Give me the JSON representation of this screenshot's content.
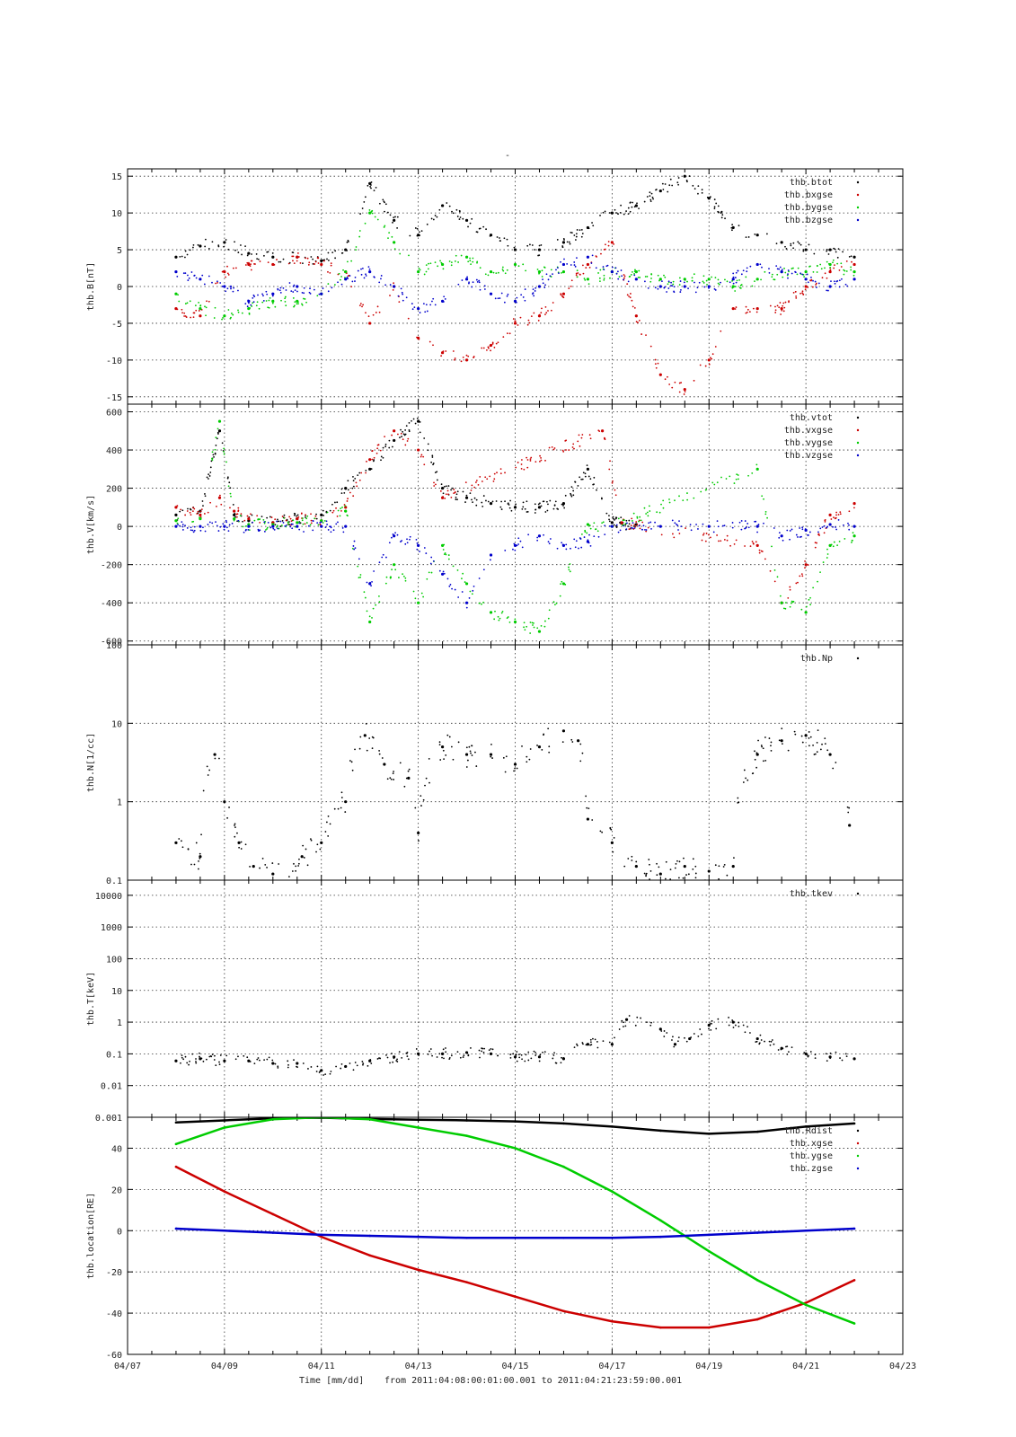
{
  "figure_title": "-",
  "footer": {
    "xlabel": "Time [mm/dd]",
    "range_text": "from 2011:04:08:00:01:00.001  to  2011:04:21:23:59:00.001"
  },
  "x_axis": {
    "tick_days": [
      7,
      9,
      11,
      13,
      15,
      17,
      19,
      21,
      23
    ],
    "tick_labels": [
      "04/07",
      "04/09",
      "04/11",
      "04/13",
      "04/15",
      "04/17",
      "04/19",
      "04/21",
      "04/23"
    ],
    "range_days": [
      7,
      23
    ],
    "minor_step_days": 0.5,
    "grid": true
  },
  "colors": {
    "black": "#000000",
    "red": "#cc0000",
    "green": "#00cc00",
    "blue": "#0000cc"
  },
  "chart_data": [
    {
      "type": "scatter",
      "ylabel": "thb.B[nT]",
      "ylim": [
        -16,
        16
      ],
      "yscale": "linear",
      "yticks": [
        -15,
        -10,
        -5,
        0,
        5,
        10,
        15
      ],
      "ytick_labels": [
        "-15",
        "-10",
        "-5",
        "0",
        "5",
        "10",
        "15"
      ],
      "grid": true,
      "legend": "top-right",
      "series": [
        {
          "name": "thb.btot",
          "color": "#000000",
          "x": [
            8,
            8.5,
            9,
            9.5,
            10,
            10.5,
            11,
            11.5,
            12,
            12.5,
            13,
            13.5,
            14,
            14.5,
            15,
            15.5,
            16,
            16.5,
            17,
            17.5,
            18,
            18.5,
            19,
            19.5,
            20,
            20.5,
            21,
            21.5,
            22
          ],
          "y": [
            4,
            5.5,
            6,
            4.5,
            4,
            4,
            3.5,
            5,
            14,
            9,
            7,
            11,
            9,
            7,
            5,
            5,
            6,
            8,
            10,
            11,
            13,
            15,
            12,
            8,
            7,
            6,
            5,
            5,
            4
          ]
        },
        {
          "name": "thb.bxgse",
          "color": "#cc0000",
          "x": [
            8,
            8.5,
            9,
            9.5,
            10,
            10.5,
            11,
            11.5,
            12,
            12.5,
            13,
            13.5,
            14,
            14.5,
            15,
            15.5,
            16,
            16.5,
            17,
            17.5,
            18,
            18.5,
            19,
            19.5,
            20,
            20.5,
            21,
            21.5,
            22
          ],
          "y": [
            -3,
            -4,
            2,
            3,
            3,
            4,
            3,
            2,
            -5,
            0,
            -7,
            -9,
            -10,
            -8,
            -5,
            -4,
            -1,
            3,
            6,
            -4,
            -12,
            -14,
            -10,
            -3,
            -3,
            -3,
            0,
            2,
            3
          ]
        },
        {
          "name": "thb.bygse",
          "color": "#00cc00",
          "x": [
            8,
            8.5,
            9,
            9.5,
            10,
            10.5,
            11,
            11.5,
            12,
            12.5,
            13,
            13.5,
            14,
            14.5,
            15,
            15.5,
            16,
            16.5,
            17,
            17.5,
            18,
            18.5,
            19,
            19.5,
            20,
            20.5,
            21,
            21.5,
            22
          ],
          "y": [
            -1,
            -3,
            -4,
            -3,
            -2,
            -2,
            -1,
            2,
            10,
            6,
            2,
            3,
            4,
            2,
            3,
            2,
            2,
            1,
            2,
            2,
            1,
            1,
            1,
            0,
            1,
            2,
            2,
            3,
            2
          ]
        },
        {
          "name": "thb.bzgse",
          "color": "#0000cc",
          "x": [
            8,
            8.5,
            9,
            9.5,
            10,
            10.5,
            11,
            11.5,
            12,
            12.5,
            13,
            13.5,
            14,
            14.5,
            15,
            15.5,
            16,
            16.5,
            17,
            17.5,
            18,
            18.5,
            19,
            19.5,
            20,
            20.5,
            21,
            21.5,
            22
          ],
          "y": [
            2,
            1,
            0,
            -2,
            -1,
            0,
            -1,
            1,
            2,
            0,
            -3,
            -2,
            1,
            -1,
            -2,
            0,
            3,
            4,
            2,
            1,
            0,
            0,
            0,
            1,
            3,
            2,
            1,
            0,
            1
          ]
        }
      ]
    },
    {
      "type": "scatter",
      "ylabel": "thb.V[km/s]",
      "ylim": [
        -620,
        640
      ],
      "yscale": "linear",
      "yticks": [
        -600,
        -400,
        -200,
        0,
        200,
        400,
        600
      ],
      "ytick_labels": [
        "-600",
        "-400",
        "-200",
        "0",
        "200",
        "400",
        "600"
      ],
      "grid": true,
      "legend": "top-right",
      "series": [
        {
          "name": "thb.vtot",
          "color": "#000000",
          "x": [
            8,
            8.5,
            8.9,
            9.2,
            9.5,
            10,
            10.5,
            11,
            11.5,
            12,
            12.5,
            13,
            13.5,
            14,
            14.5,
            15,
            15.5,
            16,
            16.5,
            17,
            17.5
          ],
          "y": [
            60,
            80,
            500,
            60,
            30,
            20,
            40,
            60,
            200,
            300,
            450,
            550,
            200,
            150,
            120,
            100,
            100,
            120,
            300,
            20,
            10
          ]
        },
        {
          "name": "thb.vxgse",
          "color": "#cc0000",
          "x": [
            8,
            8.5,
            8.9,
            9.2,
            9.5,
            10,
            10.5,
            11,
            11.5,
            12,
            12.5,
            13,
            13.5,
            16.8,
            17.2,
            20,
            20.5,
            21,
            21.5,
            22
          ],
          "y": [
            100,
            60,
            150,
            80,
            40,
            20,
            40,
            30,
            100,
            350,
            500,
            400,
            150,
            500,
            20,
            -100,
            -400,
            -200,
            60,
            120
          ]
        },
        {
          "name": "thb.vygse",
          "color": "#00cc00",
          "x": [
            8,
            8.5,
            8.9,
            9.2,
            9.5,
            10,
            10.5,
            11,
            11.5,
            12,
            12.5,
            13,
            13.5,
            14,
            14.5,
            15,
            15.5,
            16,
            16.5,
            17,
            20,
            20.5,
            21,
            21.5,
            22
          ],
          "y": [
            30,
            40,
            550,
            40,
            10,
            10,
            20,
            30,
            80,
            -500,
            -200,
            -400,
            -100,
            -300,
            -450,
            -500,
            -550,
            -300,
            10,
            0,
            300,
            -400,
            -450,
            -100,
            -50
          ]
        },
        {
          "name": "thb.vzgse",
          "color": "#0000cc",
          "x": [
            8,
            8.5,
            9,
            9.5,
            10,
            10.5,
            11,
            11.5,
            12,
            12.5,
            13,
            13.5,
            14,
            14.5,
            15,
            15.5,
            16,
            16.5,
            17,
            18,
            19,
            20,
            20.5,
            21,
            21.5,
            22
          ],
          "y": [
            0,
            0,
            0,
            0,
            0,
            0,
            0,
            0,
            -300,
            -50,
            -100,
            -250,
            -400,
            -150,
            -100,
            -50,
            -100,
            -80,
            0,
            0,
            0,
            0,
            -50,
            -20,
            10,
            0
          ]
        }
      ]
    },
    {
      "type": "scatter",
      "ylabel": "thb.N[1/cc]",
      "ylim": [
        0.1,
        100
      ],
      "yscale": "log",
      "yticks": [
        0.1,
        1,
        10,
        100
      ],
      "ytick_labels": [
        "0.1",
        "1",
        "10",
        "100"
      ],
      "grid": true,
      "legend": "top-right",
      "series": [
        {
          "name": "thb.Np",
          "color": "#000000",
          "x": [
            8,
            8.5,
            8.8,
            9,
            9.3,
            9.6,
            10,
            10.6,
            11,
            11.5,
            11.9,
            12.3,
            12.8,
            13,
            13.5,
            14,
            14.5,
            15,
            15.5,
            16,
            16.3,
            16.5,
            17,
            17.5,
            18,
            18.5,
            19,
            19.5,
            20,
            20.5,
            21,
            21.5,
            21.9
          ],
          "y": [
            0.3,
            0.2,
            4,
            1,
            0.3,
            0.15,
            0.12,
            0.2,
            0.3,
            1,
            7,
            3,
            2,
            0.4,
            5,
            4,
            4,
            3,
            5,
            8,
            6,
            0.6,
            0.3,
            0.15,
            0.12,
            0.15,
            0.13,
            0.15,
            4,
            6,
            7,
            4,
            0.5
          ]
        }
      ]
    },
    {
      "type": "scatter",
      "ylabel": "thb.T[keV]",
      "ylim": [
        0.001,
        30000
      ],
      "yscale": "log",
      "yticks": [
        0.001,
        0.01,
        0.1,
        1,
        10,
        100,
        1000,
        10000
      ],
      "ytick_labels": [
        "0.001",
        "0.01",
        "0.1",
        "1",
        "10",
        "100",
        "1000",
        "10000"
      ],
      "grid": true,
      "legend": "top-right",
      "series": [
        {
          "name": "thb.tkev",
          "color": "#000000",
          "x": [
            8,
            8.5,
            9,
            9.5,
            10,
            10.5,
            11,
            11.5,
            12,
            12.5,
            13,
            13.5,
            14,
            14.5,
            15,
            15.5,
            16,
            16.5,
            17,
            17.3,
            18,
            18.3,
            18.6,
            19,
            19.5,
            20,
            20.5,
            21,
            21.5,
            22
          ],
          "y": [
            0.06,
            0.07,
            0.06,
            0.06,
            0.05,
            0.05,
            0.03,
            0.04,
            0.06,
            0.08,
            0.1,
            0.1,
            0.11,
            0.1,
            0.08,
            0.08,
            0.07,
            0.2,
            0.2,
            1.2,
            0.6,
            0.2,
            0.3,
            0.8,
            1,
            0.3,
            0.15,
            0.1,
            0.08,
            0.07
          ]
        }
      ]
    },
    {
      "type": "line",
      "ylabel": "thb.location[RE]",
      "ylim": [
        -60,
        55
      ],
      "yscale": "linear",
      "yticks": [
        -60,
        -40,
        -20,
        0,
        20,
        40
      ],
      "ytick_labels": [
        "-60",
        "-40",
        "-20",
        "0",
        "20",
        "40"
      ],
      "grid": true,
      "legend": "top-right",
      "series": [
        {
          "name": "thb.Rdist",
          "color": "#000000",
          "x": [
            8,
            9,
            10,
            11,
            12,
            13,
            14,
            15,
            16,
            17,
            18,
            19,
            20,
            21,
            22
          ],
          "y": [
            52.5,
            53.5,
            54.5,
            54.8,
            54.2,
            53.8,
            53.5,
            53,
            52,
            50.5,
            48.5,
            47,
            48,
            50.5,
            52
          ]
        },
        {
          "name": "thb.xgse",
          "color": "#cc0000",
          "x": [
            8,
            9,
            10,
            11,
            12,
            13,
            14,
            15,
            16,
            17,
            18,
            19,
            20,
            21,
            22
          ],
          "y": [
            31,
            19,
            8,
            -3,
            -12,
            -19,
            -25,
            -32,
            -39,
            -44,
            -47,
            -47,
            -43,
            -35,
            -24
          ]
        },
        {
          "name": "thb.ygse",
          "color": "#00cc00",
          "x": [
            8,
            9,
            10,
            11,
            12,
            13,
            14,
            15,
            16,
            17,
            18,
            19,
            20,
            21,
            22
          ],
          "y": [
            42,
            50,
            54,
            55,
            54,
            50,
            46,
            40,
            31,
            19,
            5,
            -10,
            -24,
            -36,
            -45
          ]
        },
        {
          "name": "thb.zgse",
          "color": "#0000cc",
          "x": [
            8,
            9,
            10,
            11,
            12,
            13,
            14,
            15,
            16,
            17,
            18,
            19,
            20,
            21,
            22
          ],
          "y": [
            1,
            0,
            -1,
            -2,
            -2.5,
            -3,
            -3.5,
            -3.5,
            -3.5,
            -3.5,
            -3,
            -2,
            -1,
            0,
            1
          ]
        }
      ]
    }
  ]
}
